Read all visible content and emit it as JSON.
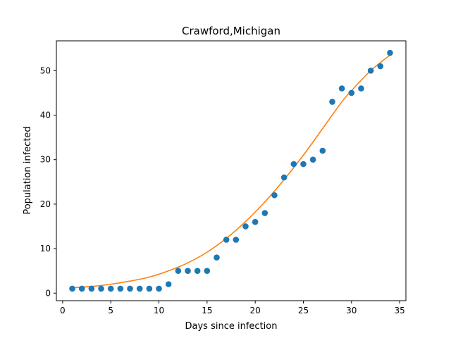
{
  "chart_data": {
    "type": "scatter",
    "title": "Crawford,Michigan",
    "xlabel": "Days since infection",
    "ylabel": "Population infected",
    "xlim": [
      -0.65,
      35.65
    ],
    "ylim": [
      -1.7,
      56.7
    ],
    "xticks": [
      0,
      5,
      10,
      15,
      20,
      25,
      30,
      35
    ],
    "yticks": [
      0,
      10,
      20,
      30,
      40,
      50
    ],
    "grid": false,
    "series": [
      {
        "kind": "scatter",
        "color": "#1f77b4",
        "points": [
          [
            1,
            1
          ],
          [
            2,
            1
          ],
          [
            3,
            1
          ],
          [
            4,
            1
          ],
          [
            5,
            1
          ],
          [
            6,
            1
          ],
          [
            7,
            1
          ],
          [
            8,
            1
          ],
          [
            9,
            1
          ],
          [
            10,
            1
          ],
          [
            11,
            2
          ],
          [
            12,
            5
          ],
          [
            13,
            5
          ],
          [
            14,
            5
          ],
          [
            15,
            5
          ],
          [
            16,
            8
          ],
          [
            17,
            12
          ],
          [
            18,
            12
          ],
          [
            19,
            15
          ],
          [
            20,
            16
          ],
          [
            21,
            18
          ],
          [
            22,
            22
          ],
          [
            23,
            26
          ],
          [
            24,
            29
          ],
          [
            25,
            29
          ],
          [
            26,
            30
          ],
          [
            27,
            32
          ],
          [
            28,
            43
          ],
          [
            29,
            46
          ],
          [
            30,
            45
          ],
          [
            31,
            46
          ],
          [
            32,
            50
          ],
          [
            33,
            51
          ],
          [
            34,
            54
          ]
        ]
      },
      {
        "kind": "line",
        "color": "#ff7f0e",
        "points": [
          [
            1,
            1.2
          ],
          [
            3,
            1.5
          ],
          [
            5,
            2.0
          ],
          [
            7,
            2.7
          ],
          [
            9,
            3.6
          ],
          [
            11,
            5.0
          ],
          [
            13,
            6.8
          ],
          [
            15,
            9.2
          ],
          [
            17,
            12.3
          ],
          [
            19,
            16.1
          ],
          [
            21,
            20.5
          ],
          [
            23,
            25.5
          ],
          [
            25,
            31.0
          ],
          [
            27,
            37.0
          ],
          [
            29,
            43.0
          ],
          [
            30,
            45.5
          ],
          [
            32,
            50.0
          ],
          [
            34,
            53.5
          ]
        ]
      }
    ]
  }
}
